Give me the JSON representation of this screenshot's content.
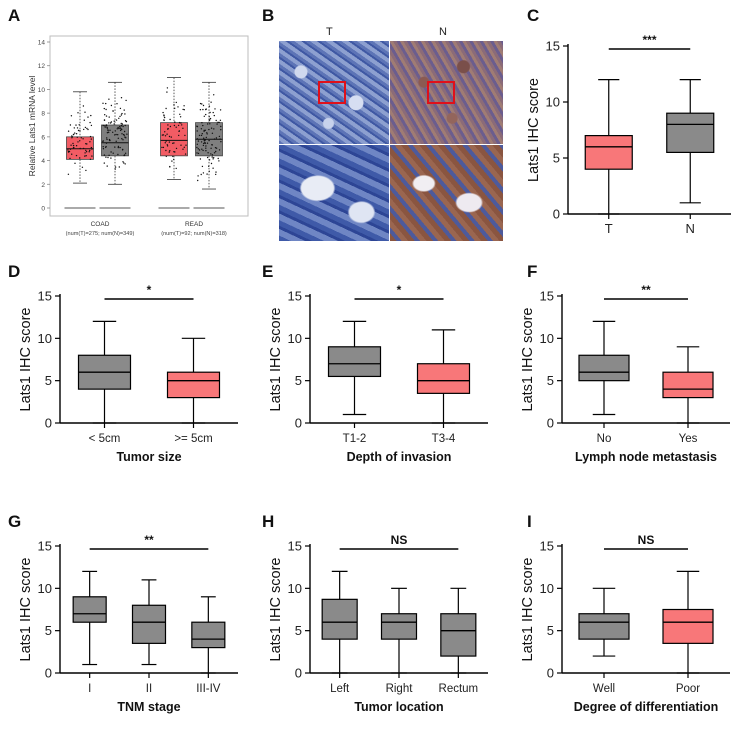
{
  "panel_letters": [
    "A",
    "B",
    "C",
    "D",
    "E",
    "F",
    "G",
    "H",
    "I"
  ],
  "image_panel": {
    "labels": [
      "T",
      "N"
    ]
  },
  "colors": {
    "tumor_box": "#F87779",
    "normal_box": "#8A8A8A",
    "sig_bar": "#000000",
    "roi_box": "#E0101A",
    "gepia_tumor": "#F25C64",
    "gepia_normal": "#7F7F7F"
  },
  "icons": {
    "red-roi-box": "square-outline"
  },
  "chart_data": [
    {
      "panel": "A",
      "type": "box",
      "ylabel": "Relative Lats1 mRNA level",
      "yticks": [
        0,
        2,
        4,
        6,
        8,
        10,
        12,
        14
      ],
      "ylim": [
        0,
        14
      ],
      "categories": [
        "COAD",
        "READ"
      ],
      "category_notes": [
        "(num(T)=275; num(N)=349)",
        "(num(T)=92; num(N)=318)"
      ],
      "series": [
        {
          "role": "tumor",
          "boxes": [
            {
              "category": "COAD",
              "min": 2.1,
              "q1": 4.1,
              "median": 5.0,
              "q3": 6.0,
              "max": 9.8
            },
            {
              "category": "READ",
              "min": 2.4,
              "q1": 4.4,
              "median": 5.7,
              "q3": 7.2,
              "max": 11.0
            }
          ]
        },
        {
          "role": "normal",
          "boxes": [
            {
              "category": "COAD",
              "min": 2.0,
              "q1": 4.4,
              "median": 5.5,
              "q3": 7.0,
              "max": 10.6
            },
            {
              "category": "READ",
              "min": 1.6,
              "q1": 4.4,
              "median": 5.8,
              "q3": 7.2,
              "max": 10.6
            }
          ]
        }
      ]
    },
    {
      "panel": "C",
      "type": "box",
      "ylabel": "Lats1 IHC score",
      "xlabel": "",
      "yticks": [
        0,
        5,
        10,
        15
      ],
      "ylim": [
        0,
        15
      ],
      "significance": "***",
      "boxes": [
        {
          "category": "T",
          "min": 0,
          "q1": 4,
          "median": 6,
          "q3": 7,
          "max": 12,
          "color": "tumor"
        },
        {
          "category": "N",
          "min": 1,
          "q1": 5.5,
          "median": 8,
          "q3": 9,
          "max": 12,
          "color": "normal"
        }
      ]
    },
    {
      "panel": "D",
      "type": "box",
      "ylabel": "Lats1 IHC score",
      "xlabel": "Tumor size",
      "yticks": [
        0,
        5,
        10,
        15
      ],
      "ylim": [
        0,
        15
      ],
      "significance": "*",
      "boxes": [
        {
          "category": "< 5cm",
          "min": 0,
          "q1": 4,
          "median": 6,
          "q3": 8,
          "max": 12,
          "color": "normal"
        },
        {
          "category": ">= 5cm",
          "min": 0,
          "q1": 3,
          "median": 5,
          "q3": 6,
          "max": 10,
          "color": "tumor"
        }
      ]
    },
    {
      "panel": "E",
      "type": "box",
      "ylabel": "Lats1 IHC score",
      "xlabel": "Depth of invasion",
      "yticks": [
        0,
        5,
        10,
        15
      ],
      "ylim": [
        0,
        15
      ],
      "significance": "*",
      "boxes": [
        {
          "category": "T1-2",
          "min": 1,
          "q1": 5.5,
          "median": 7,
          "q3": 9,
          "max": 12,
          "color": "normal"
        },
        {
          "category": "T3-4",
          "min": 0,
          "q1": 3.5,
          "median": 5,
          "q3": 7,
          "max": 11,
          "color": "tumor"
        }
      ]
    },
    {
      "panel": "F",
      "type": "box",
      "ylabel": "Lats1 IHC score",
      "xlabel": "Lymph node metastasis",
      "yticks": [
        0,
        5,
        10,
        15
      ],
      "ylim": [
        0,
        15
      ],
      "significance": "**",
      "boxes": [
        {
          "category": "No",
          "min": 1,
          "q1": 5,
          "median": 6,
          "q3": 8,
          "max": 12,
          "color": "normal"
        },
        {
          "category": "Yes",
          "min": 0,
          "q1": 3,
          "median": 4,
          "q3": 6,
          "max": 9,
          "color": "tumor"
        }
      ]
    },
    {
      "panel": "G",
      "type": "box",
      "ylabel": "Lats1 IHC score",
      "xlabel": "TNM stage",
      "yticks": [
        0,
        5,
        10,
        15
      ],
      "ylim": [
        0,
        15
      ],
      "significance": "**",
      "boxes": [
        {
          "category": "I",
          "min": 1,
          "q1": 6,
          "median": 7,
          "q3": 9,
          "max": 12,
          "color": "normal"
        },
        {
          "category": "II",
          "min": 1,
          "q1": 3.5,
          "median": 6,
          "q3": 8,
          "max": 11,
          "color": "normal"
        },
        {
          "category": "III-IV",
          "min": 0,
          "q1": 3,
          "median": 4,
          "q3": 6,
          "max": 9,
          "color": "normal"
        }
      ]
    },
    {
      "panel": "H",
      "type": "box",
      "ylabel": "Lats1 IHC score",
      "xlabel": "Tumor location",
      "yticks": [
        0,
        5,
        10,
        15
      ],
      "ylim": [
        0,
        15
      ],
      "significance": "NS",
      "boxes": [
        {
          "category": "Left",
          "min": 0,
          "q1": 4,
          "median": 6,
          "q3": 8.7,
          "max": 12,
          "color": "normal"
        },
        {
          "category": "Right",
          "min": 0,
          "q1": 4,
          "median": 6,
          "q3": 7,
          "max": 10,
          "color": "normal"
        },
        {
          "category": "Rectum",
          "min": 0,
          "q1": 2,
          "median": 5,
          "q3": 7,
          "max": 10,
          "color": "normal"
        }
      ]
    },
    {
      "panel": "I",
      "type": "box",
      "ylabel": "Lats1 IHC score",
      "xlabel": "Degree of differentiation",
      "yticks": [
        0,
        5,
        10,
        15
      ],
      "ylim": [
        0,
        15
      ],
      "significance": "NS",
      "boxes": [
        {
          "category": "Well",
          "min": 2,
          "q1": 4,
          "median": 6,
          "q3": 7,
          "max": 10,
          "color": "normal"
        },
        {
          "category": "Poor",
          "min": 0,
          "q1": 3.5,
          "median": 6,
          "q3": 7.5,
          "max": 12,
          "color": "tumor"
        }
      ]
    }
  ]
}
